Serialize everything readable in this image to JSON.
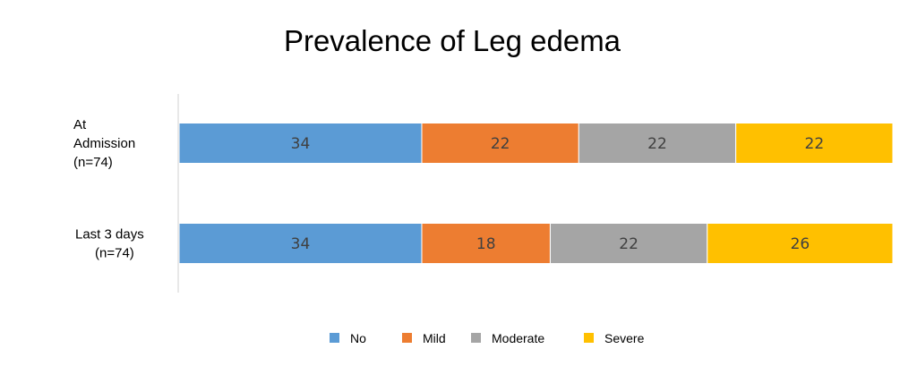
{
  "chart_data": {
    "type": "bar",
    "orientation": "horizontal",
    "stacked": true,
    "title": "Prevalence of Leg edema",
    "categories": [
      [
        "At",
        "Admission",
        "(n=74)"
      ],
      [
        "Last 3 days",
        "(n=74)"
      ]
    ],
    "series": [
      {
        "name": "No",
        "color": "#5B9BD5",
        "values": [
          34,
          34
        ]
      },
      {
        "name": "Mild",
        "color": "#ED7D31",
        "values": [
          22,
          18
        ]
      },
      {
        "name": "Moderate",
        "color": "#A5A5A5",
        "values": [
          22,
          22
        ]
      },
      {
        "name": "Severe",
        "color": "#FFC000",
        "values": [
          22,
          26
        ]
      }
    ],
    "legend_position": "bottom",
    "grid": false
  }
}
